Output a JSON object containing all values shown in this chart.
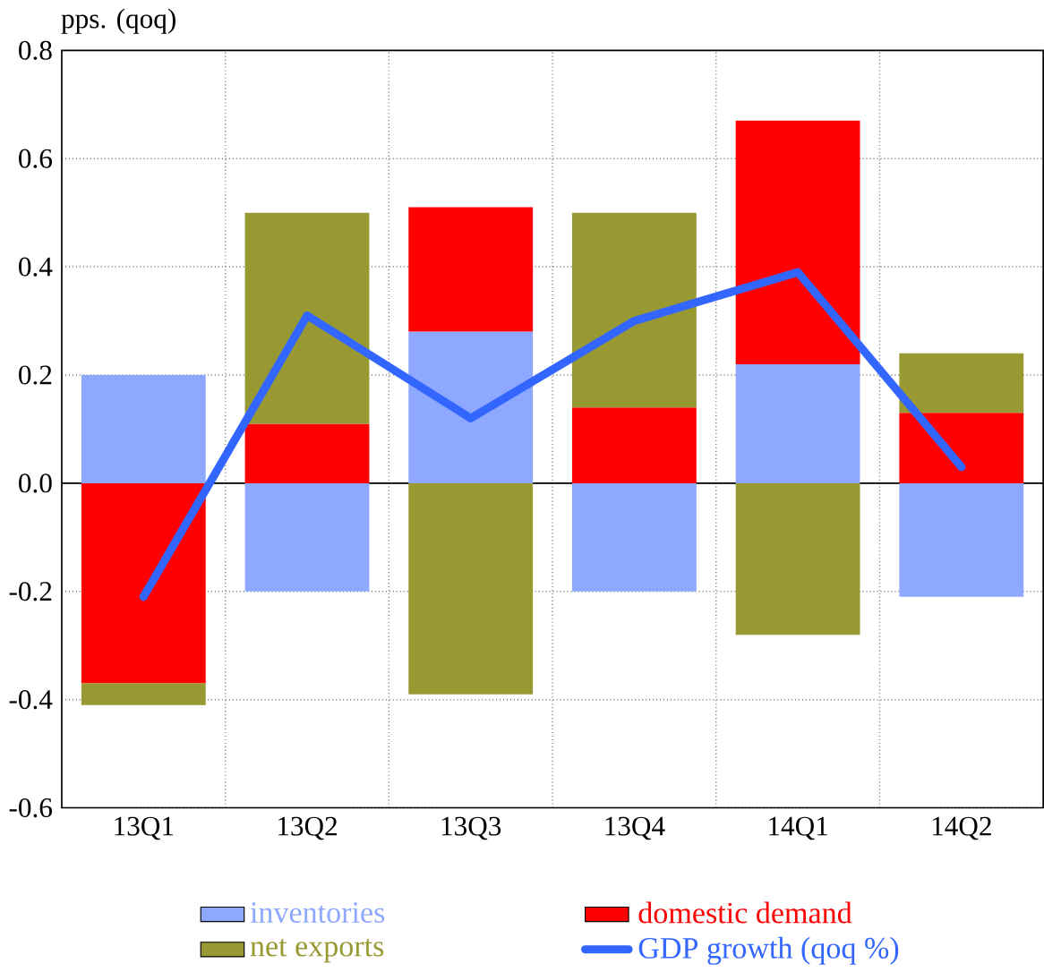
{
  "chart_data": {
    "type": "bar",
    "stacked": true,
    "ylabel": "pps. (qoq)",
    "categories": [
      "13Q1",
      "13Q2",
      "13Q3",
      "13Q4",
      "14Q1",
      "14Q2"
    ],
    "series": [
      {
        "name": "inventories",
        "color": "#8fa8ff",
        "values": [
          0.2,
          -0.2,
          0.28,
          -0.2,
          0.22,
          -0.21
        ]
      },
      {
        "name": "domestic demand",
        "color": "#ff0000",
        "values": [
          -0.37,
          0.11,
          0.23,
          0.14,
          0.45,
          0.13
        ]
      },
      {
        "name": "net exports",
        "color": "#999933",
        "values": [
          -0.04,
          0.39,
          -0.39,
          0.36,
          -0.28,
          0.11
        ]
      },
      {
        "name": "GDP growth (qoq %)",
        "type": "line",
        "color": "#3366ff",
        "values": [
          -0.21,
          0.31,
          0.12,
          0.3,
          0.39,
          0.03
        ]
      }
    ],
    "ylim": [
      -0.6,
      0.8
    ],
    "yticks": [
      -0.6,
      -0.4,
      -0.2,
      {
        "value": 0,
        "label": "0.0"
      },
      0.2,
      0.4,
      0.6,
      0.8
    ],
    "grid": true,
    "legend": "bottom"
  }
}
